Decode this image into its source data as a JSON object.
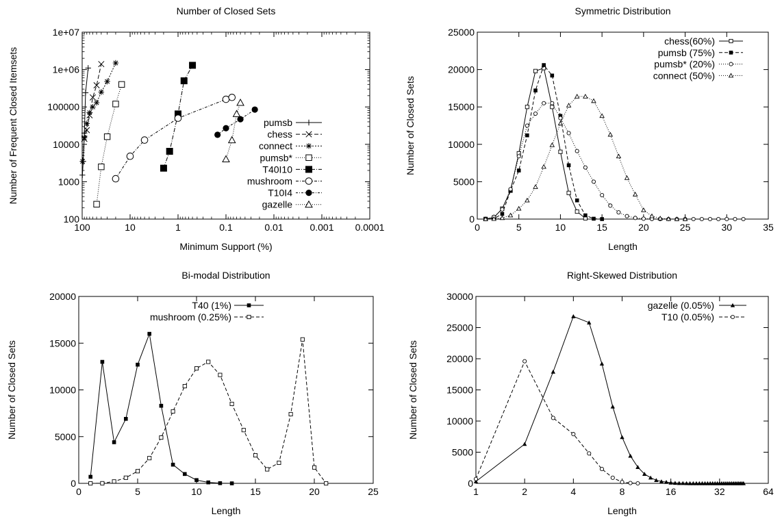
{
  "figure": {
    "panel_count": 4
  },
  "chart_data": [
    {
      "id": "closed-sets",
      "type": "line",
      "title": "Number of Closed Sets",
      "xlabel": "Minimum Support (%)",
      "ylabel": "Number of Frequent Closed Itemsets",
      "xscale": "log",
      "xreversed": true,
      "yscale": "log",
      "xlim": [
        100,
        0.0001
      ],
      "ylim": [
        100,
        10000000
      ],
      "xticks": [
        100,
        10,
        1,
        0.1,
        0.01,
        0.001,
        0.0001
      ],
      "xtick_labels": [
        "100",
        "10",
        "1",
        "0.1",
        "0.01",
        "0.001",
        "0.0001"
      ],
      "yticks": [
        100,
        1000,
        10000,
        100000,
        1000000,
        10000000
      ],
      "ytick_labels": [
        "100",
        "1000",
        "10000",
        "100000",
        "1e+06",
        "1e+07"
      ],
      "legend": "right",
      "series": [
        {
          "name": "pumsb",
          "marker": "plus",
          "dash": "",
          "x": [
            99,
            95,
            90,
            85,
            75
          ],
          "y": [
            1500,
            3500,
            20000,
            240000,
            1100000
          ]
        },
        {
          "name": "chess",
          "marker": "cross",
          "dash": "6,3",
          "x": [
            90,
            80,
            70,
            60,
            50,
            40
          ],
          "y": [
            14000,
            24000,
            60000,
            180000,
            380000,
            1400000
          ]
        },
        {
          "name": "connect",
          "marker": "star",
          "dash": "2,2",
          "x": [
            98,
            90,
            80,
            70,
            60,
            50,
            40,
            30,
            20
          ],
          "y": [
            3500,
            15000,
            36000,
            70000,
            100000,
            130000,
            250000,
            480000,
            1500000
          ]
        },
        {
          "name": "pumsb*",
          "marker": "square-open",
          "dash": "1,2",
          "x": [
            50,
            40,
            30,
            20,
            15
          ],
          "y": [
            250,
            2500,
            16000,
            120000,
            400000
          ]
        },
        {
          "name": "T40I10",
          "marker": "square-filled",
          "dash": "6,2,1,2",
          "x": [
            2,
            1.5,
            1,
            0.75,
            0.5
          ],
          "y": [
            2300,
            6500,
            65000,
            500000,
            1300000
          ]
        },
        {
          "name": "mushroom",
          "marker": "circle-open",
          "dash": "4,2,1,2",
          "x": [
            20,
            10,
            5,
            1,
            0.1,
            0.075
          ],
          "y": [
            1200,
            4800,
            13000,
            50000,
            160000,
            180000
          ]
        },
        {
          "name": "T10I4",
          "marker": "circle-filled",
          "dash": "3,2,1,2",
          "x": [
            0.15,
            0.1,
            0.05,
            0.025
          ],
          "y": [
            18000,
            27000,
            47000,
            85000
          ]
        },
        {
          "name": "gazelle",
          "marker": "triangle-open",
          "dash": "1,2",
          "x": [
            0.1,
            0.075,
            0.06,
            0.05
          ],
          "y": [
            4000,
            13000,
            65000,
            130000
          ]
        }
      ]
    },
    {
      "id": "symmetric",
      "type": "line",
      "title": "Symmetric Distribution",
      "xlabel": "Length",
      "ylabel": "Number of Closed Sets",
      "xlim": [
        0,
        35
      ],
      "ylim": [
        0,
        25000
      ],
      "xticks": [
        0,
        5,
        10,
        15,
        20,
        25,
        30,
        35
      ],
      "yticks": [
        0,
        5000,
        10000,
        15000,
        20000,
        25000
      ],
      "legend": "top-right",
      "series": [
        {
          "name": "chess(60%)",
          "marker": "square-open-small",
          "dash": "",
          "x": [
            1,
            2,
            3,
            4,
            5,
            6,
            7,
            8,
            9,
            10,
            11,
            12,
            13
          ],
          "y": [
            20,
            200,
            1400,
            3800,
            8800,
            15000,
            19800,
            20200,
            15000,
            9000,
            3500,
            1000,
            100
          ]
        },
        {
          "name": "pumsb (75%)",
          "marker": "square-filled-small",
          "dash": "5,3",
          "x": [
            1,
            2,
            3,
            4,
            5,
            6,
            7,
            8,
            9,
            10,
            11,
            12,
            13,
            14,
            15
          ],
          "y": [
            0,
            50,
            700,
            3800,
            6500,
            11200,
            17200,
            20600,
            19200,
            13800,
            7200,
            2500,
            500,
            50,
            0
          ]
        },
        {
          "name": "pumsb* (20%)",
          "marker": "circle-small",
          "dash": "1,2",
          "x": [
            1,
            2,
            3,
            4,
            5,
            6,
            7,
            8,
            9,
            10,
            11,
            12,
            13,
            14,
            15,
            16,
            17,
            18,
            19,
            20,
            21,
            22,
            23,
            24,
            25,
            26,
            27,
            28,
            29,
            30,
            31,
            32
          ],
          "y": [
            0,
            300,
            1300,
            4000,
            8400,
            12500,
            14100,
            15500,
            15500,
            13500,
            11500,
            9100,
            6900,
            5000,
            3200,
            1800,
            900,
            400,
            150,
            50,
            20,
            0,
            0,
            0,
            0,
            0,
            0,
            0,
            0,
            0,
            0,
            0
          ]
        },
        {
          "name": "connect (50%)",
          "marker": "triangle-small",
          "dash": "1,2",
          "x": [
            1,
            2,
            3,
            4,
            5,
            6,
            7,
            8,
            9,
            10,
            11,
            12,
            13,
            14,
            15,
            16,
            17,
            18,
            19,
            20,
            21,
            22,
            23,
            24,
            25
          ],
          "y": [
            0,
            30,
            150,
            500,
            1400,
            2500,
            4300,
            7000,
            9900,
            12800,
            15200,
            16400,
            16400,
            15800,
            13800,
            11300,
            8400,
            5500,
            3300,
            1200,
            400,
            100,
            20,
            0,
            0
          ]
        }
      ]
    },
    {
      "id": "bimodal",
      "type": "line",
      "title": "Bi-modal Distribution",
      "xlabel": "Length",
      "ylabel": "Number of Closed Sets",
      "xlim": [
        0,
        25
      ],
      "ylim": [
        0,
        20000
      ],
      "xticks": [
        0,
        5,
        10,
        15,
        20,
        25
      ],
      "yticks": [
        0,
        5000,
        10000,
        15000,
        20000
      ],
      "legend": "top-left",
      "series": [
        {
          "name": "T40 (1%)",
          "marker": "square-filled-small",
          "dash": "",
          "x": [
            1,
            2,
            3,
            4,
            5,
            6,
            7,
            8,
            9,
            10,
            11,
            12,
            13
          ],
          "y": [
            700,
            13000,
            4400,
            6900,
            12700,
            16000,
            8300,
            2000,
            1000,
            350,
            100,
            20,
            0
          ]
        },
        {
          "name": "mushroom (0.25%)",
          "marker": "square-open-small",
          "dash": "5,3",
          "x": [
            1,
            2,
            3,
            4,
            5,
            6,
            7,
            8,
            9,
            10,
            11,
            12,
            13,
            14,
            15,
            16,
            17,
            18,
            19,
            20,
            21
          ],
          "y": [
            0,
            10,
            200,
            600,
            1300,
            2700,
            4900,
            7700,
            10400,
            12300,
            13000,
            11600,
            8500,
            5700,
            3000,
            1500,
            2200,
            7400,
            15400,
            1700,
            0
          ]
        }
      ]
    },
    {
      "id": "right-skewed",
      "type": "line",
      "title": "Right-Skewed Distribution",
      "xlabel": "Length",
      "ylabel": "Number of Closed Sets",
      "xscale": "log2",
      "xlim": [
        1,
        64
      ],
      "ylim": [
        0,
        30000
      ],
      "xticks": [
        1,
        2,
        4,
        8,
        16,
        32,
        64
      ],
      "yticks": [
        0,
        5000,
        10000,
        15000,
        20000,
        25000,
        30000
      ],
      "legend": "top-right",
      "series": [
        {
          "name": "gazelle (0.05%)",
          "marker": "triangle-filled-small",
          "dash": "",
          "x": [
            1,
            2,
            3,
            4,
            5,
            6,
            7,
            8,
            9,
            10,
            11,
            12,
            13,
            14,
            15,
            16,
            17,
            18,
            19,
            20,
            21,
            22,
            23,
            24,
            25,
            26,
            27,
            28,
            29,
            30,
            31,
            32,
            33,
            34,
            35,
            36,
            37,
            38,
            39,
            40,
            41,
            42,
            43,
            44,
            45
          ],
          "y": [
            300,
            6300,
            17900,
            26800,
            25800,
            19200,
            12300,
            7400,
            4400,
            2600,
            1500,
            900,
            500,
            300,
            200,
            100,
            50,
            30,
            20,
            10,
            0,
            0,
            0,
            0,
            0,
            0,
            0,
            0,
            0,
            0,
            0,
            0,
            0,
            0,
            0,
            0,
            0,
            0,
            0,
            0,
            0,
            0,
            0,
            0,
            0
          ]
        },
        {
          "name": "T10 (0.05%)",
          "marker": "circle-small",
          "dash": "5,3",
          "x": [
            1,
            2,
            3,
            4,
            5,
            6,
            7,
            8,
            9,
            10
          ],
          "y": [
            700,
            19600,
            10500,
            7900,
            4800,
            2300,
            900,
            200,
            50,
            0
          ]
        }
      ]
    }
  ]
}
